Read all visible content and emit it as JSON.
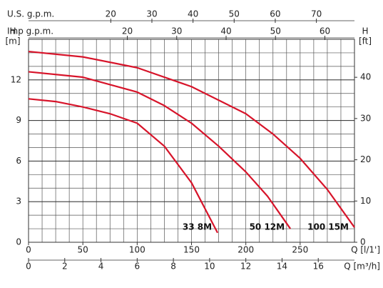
{
  "chart_data": {
    "type": "line",
    "y_label": "H",
    "y_unit": "[m]",
    "y2_label": "H",
    "y2_unit": "[ft]",
    "xlim": [
      0,
      300
    ],
    "xticks": [
      0,
      50,
      100,
      150,
      200,
      250
    ],
    "x_label": "Q [l/1']",
    "ylim": [
      0,
      15
    ],
    "yticks": [
      0,
      3,
      6,
      9,
      12
    ],
    "y2lim": [
      0,
      49.21
    ],
    "y2ticks": [
      0,
      10,
      20,
      30,
      40
    ],
    "extra_x_axes": [
      {
        "label": "Q [m³/h]",
        "lim": [
          0,
          18
        ],
        "ticks": [
          0,
          2,
          4,
          6,
          8,
          10,
          12,
          14,
          16
        ],
        "position": "bottom"
      },
      {
        "label": "U.S. g.p.m.",
        "lim": [
          0,
          79.26
        ],
        "ticks": [
          20,
          30,
          40,
          50,
          60,
          70
        ],
        "position": "top"
      },
      {
        "label": "Imp g.p.m.",
        "lim": [
          0,
          65.99
        ],
        "ticks": [
          20,
          30,
          40,
          50,
          60
        ],
        "position": "top"
      }
    ],
    "grid": true,
    "minor_grid": {
      "x": 12.5,
      "y": 1
    },
    "series": [
      {
        "name": "33 8M",
        "color": "#d7142a",
        "x": [
          0,
          25,
          50,
          75,
          100,
          125,
          150,
          174
        ],
        "values": [
          10.6,
          10.4,
          10.0,
          9.5,
          8.8,
          7.1,
          4.4,
          0.7
        ]
      },
      {
        "name": "50 12M",
        "color": "#d7142a",
        "x": [
          0,
          50,
          100,
          125,
          150,
          175,
          200,
          220,
          241
        ],
        "values": [
          12.6,
          12.2,
          11.1,
          10.1,
          8.8,
          7.1,
          5.2,
          3.4,
          1.0
        ]
      },
      {
        "name": "100 15M",
        "color": "#d7142a",
        "x": [
          0,
          50,
          100,
          150,
          200,
          225,
          250,
          275,
          300
        ],
        "values": [
          14.1,
          13.7,
          12.9,
          11.5,
          9.5,
          8.0,
          6.2,
          3.9,
          1.1
        ]
      }
    ]
  }
}
